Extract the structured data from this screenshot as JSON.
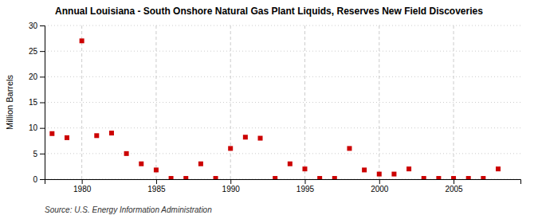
{
  "chart_data": {
    "type": "scatter",
    "title": "Annual Louisiana - South Onshore Natural Gas Plant Liquids, Reserves New Field Discoveries",
    "ylabel": "Million Barrels",
    "annotations": [
      "Source: U.S. Energy Information Administration"
    ],
    "x": [
      1978,
      1979,
      1980,
      1981,
      1982,
      1983,
      1984,
      1985,
      1986,
      1987,
      1988,
      1989,
      1990,
      1991,
      1992,
      1993,
      1994,
      1995,
      1996,
      1997,
      1998,
      1999,
      2000,
      2001,
      2002,
      2003,
      2004,
      2005,
      2006,
      2007,
      2008
    ],
    "values": [
      8.9,
      8.1,
      27.0,
      8.5,
      9.0,
      5.0,
      3.0,
      1.8,
      0.15,
      0.15,
      3.0,
      0.15,
      6.0,
      8.2,
      8.0,
      0.15,
      3.0,
      2.0,
      0.15,
      0.15,
      6.0,
      1.8,
      1.0,
      1.0,
      2.0,
      0.15,
      0.15,
      0.15,
      0.15,
      0.15,
      2.0
    ],
    "color": "#cc0000",
    "marker": "square",
    "xlim": [
      1977.5,
      2009.5
    ],
    "xticks": [
      1980,
      1985,
      1990,
      1995,
      2000,
      2005
    ],
    "ylim": [
      0,
      30
    ],
    "yticks": [
      0,
      5,
      10,
      15,
      20,
      25,
      30
    ],
    "grid": true
  }
}
